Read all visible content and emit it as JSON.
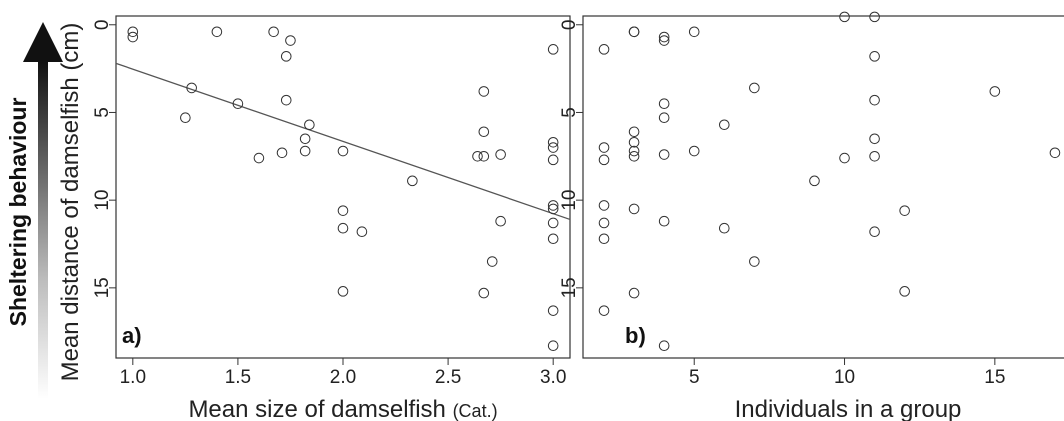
{
  "figure": {
    "side_label": "Sheltering behaviour",
    "ylabel": "Mean distance of damselfish (cm)"
  },
  "chart_data": [
    {
      "type": "scatter",
      "panel_label": "a)",
      "xlabel_main": "Mean size of damselfish ",
      "xlabel_unit": "(Cat.)",
      "ylabel": "Mean distance of damselfish (cm)",
      "xlim": [
        0.92,
        3.08
      ],
      "ylim": [
        19,
        -0.5
      ],
      "y_reversed": true,
      "xticks": [
        {
          "v": 1.0,
          "label": "1.0"
        },
        {
          "v": 1.5,
          "label": "1.5"
        },
        {
          "v": 2.0,
          "label": "2.0"
        },
        {
          "v": 2.5,
          "label": "2.5"
        },
        {
          "v": 3.0,
          "label": "3.0"
        }
      ],
      "yticks": [
        {
          "v": 0,
          "label": "0"
        },
        {
          "v": 5,
          "label": "5"
        },
        {
          "v": 10,
          "label": "10"
        },
        {
          "v": 15,
          "label": "15"
        }
      ],
      "regression_line": {
        "x": [
          0.92,
          3.08
        ],
        "y": [
          2.2,
          11.1
        ]
      },
      "points": [
        [
          1.0,
          0.4
        ],
        [
          1.0,
          0.7
        ],
        [
          1.25,
          5.3
        ],
        [
          1.28,
          3.6
        ],
        [
          1.4,
          0.4
        ],
        [
          1.5,
          4.5
        ],
        [
          1.6,
          7.6
        ],
        [
          1.67,
          0.4
        ],
        [
          1.71,
          7.3
        ],
        [
          1.73,
          1.8
        ],
        [
          1.73,
          4.3
        ],
        [
          1.75,
          0.9
        ],
        [
          1.82,
          6.5
        ],
        [
          1.82,
          7.2
        ],
        [
          1.84,
          5.7
        ],
        [
          2.0,
          7.2
        ],
        [
          2.0,
          10.6
        ],
        [
          2.0,
          11.6
        ],
        [
          2.0,
          15.2
        ],
        [
          2.09,
          11.8
        ],
        [
          2.33,
          8.9
        ],
        [
          2.64,
          7.5
        ],
        [
          2.67,
          3.8
        ],
        [
          2.67,
          6.1
        ],
        [
          2.67,
          7.5
        ],
        [
          2.67,
          15.3
        ],
        [
          2.71,
          13.5
        ],
        [
          2.75,
          7.4
        ],
        [
          2.75,
          11.2
        ],
        [
          3.0,
          1.4
        ],
        [
          3.0,
          6.7
        ],
        [
          3.0,
          7.0
        ],
        [
          3.0,
          7.7
        ],
        [
          3.0,
          10.3
        ],
        [
          3.0,
          10.5
        ],
        [
          3.0,
          11.3
        ],
        [
          3.0,
          12.2
        ],
        [
          3.0,
          16.3
        ],
        [
          3.0,
          18.3
        ]
      ]
    },
    {
      "type": "scatter",
      "panel_label": "b)",
      "xlabel_main": "Individuals in a group",
      "xlim": [
        1.3,
        17.6
      ],
      "ylim": [
        19,
        -0.5
      ],
      "y_reversed": true,
      "xticks": [
        {
          "v": 5,
          "label": "5"
        },
        {
          "v": 10,
          "label": "10"
        },
        {
          "v": 15,
          "label": "15"
        }
      ],
      "yticks": [
        {
          "v": 0,
          "label": "0"
        },
        {
          "v": 5,
          "label": "5"
        },
        {
          "v": 10,
          "label": "10"
        },
        {
          "v": 15,
          "label": "15"
        }
      ],
      "points": [
        [
          2,
          1.4
        ],
        [
          2,
          7.0
        ],
        [
          2,
          7.7
        ],
        [
          2,
          10.3
        ],
        [
          2,
          11.3
        ],
        [
          2,
          12.2
        ],
        [
          2,
          16.3
        ],
        [
          3,
          0.4
        ],
        [
          3,
          0.4
        ],
        [
          3,
          6.1
        ],
        [
          3,
          6.7
        ],
        [
          3,
          7.2
        ],
        [
          3,
          7.5
        ],
        [
          3,
          10.5
        ],
        [
          3,
          15.3
        ],
        [
          4,
          0.7
        ],
        [
          4,
          0.9
        ],
        [
          4,
          4.5
        ],
        [
          4,
          5.3
        ],
        [
          4,
          7.4
        ],
        [
          4,
          11.2
        ],
        [
          4,
          18.3
        ],
        [
          5,
          0.4
        ],
        [
          5,
          7.2
        ],
        [
          6,
          5.7
        ],
        [
          6,
          11.6
        ],
        [
          7,
          3.6
        ],
        [
          7,
          13.5
        ],
        [
          9,
          8.9
        ],
        [
          10,
          7.6
        ],
        [
          10,
          -0.45
        ],
        [
          11,
          -0.45
        ],
        [
          11,
          1.8
        ],
        [
          11,
          4.3
        ],
        [
          11,
          6.5
        ],
        [
          11,
          7.5
        ],
        [
          11,
          11.8
        ],
        [
          12,
          10.6
        ],
        [
          12,
          15.2
        ],
        [
          15,
          3.8
        ],
        [
          17,
          7.3
        ]
      ]
    }
  ]
}
